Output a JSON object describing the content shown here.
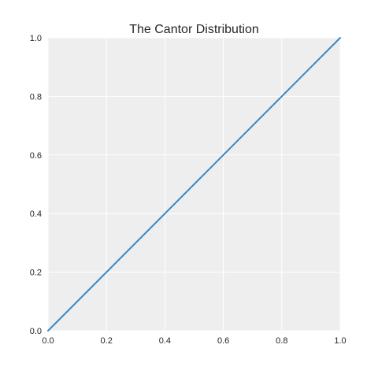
{
  "chart_data": {
    "type": "line",
    "title": "The Cantor Distribution",
    "xlabel": "",
    "ylabel": "",
    "xlim": [
      0.0,
      1.0
    ],
    "ylim": [
      0.0,
      1.0
    ],
    "xticks": [
      0.0,
      0.2,
      0.4,
      0.6,
      0.8,
      1.0
    ],
    "yticks": [
      0.0,
      0.2,
      0.4,
      0.6,
      0.8,
      1.0
    ],
    "xtick_labels": [
      "0.0",
      "0.2",
      "0.4",
      "0.6",
      "0.8",
      "1.0"
    ],
    "ytick_labels": [
      "0.0",
      "0.2",
      "0.4",
      "0.6",
      "0.8",
      "1.0"
    ],
    "grid": true,
    "background_color": "#eeeeee",
    "series": [
      {
        "color": "#3a87c4",
        "x": [
          0.0,
          1.0
        ],
        "y": [
          0.0,
          1.0
        ]
      }
    ]
  }
}
